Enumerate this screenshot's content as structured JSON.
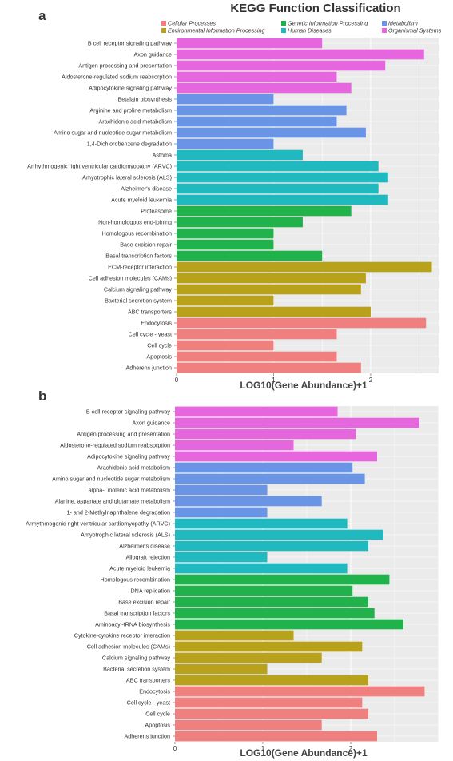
{
  "figure": {
    "title": "KEGG Function Classification"
  },
  "colors": {
    "Cellular Processes": "#F08080",
    "Environmental Information Processing": "#B8A21C",
    "Genetic Information Processing": "#22B24C",
    "Human Diseases": "#20B9C0",
    "Metabolism": "#6A95E6",
    "Organismal Systems": "#E667DD",
    "panel_bg": "#EBEBEB",
    "grid": "#FFFFFF"
  },
  "legend": {
    "placement": "top",
    "entries": [
      "Cellular Processes",
      "Genetic Information Processing",
      "Metabolism",
      "Environmental Information Processing",
      "Human Diseases",
      "Organismal Systems"
    ]
  },
  "chart_data": [
    {
      "type": "bar",
      "orientation": "horizontal",
      "panel_label": "a",
      "xlabel": "LOG10(Gene Abundance)+1",
      "ylabel": "",
      "xlim": [
        0,
        2.7
      ],
      "xticks": [
        0,
        1,
        2
      ],
      "grid": true,
      "categories": [
        "B cell receptor signaling pathway",
        "Axon guidance",
        "Antigen processing and presentation",
        "Aldosterone-regulated sodium reabsorption",
        "Adipocytokine signaling pathway",
        "Betalain biosynthesis",
        "Arginine and proline metabolism",
        "Arachidonic acid metabolism",
        "Amino sugar and nucleotide sugar metabolism",
        "1,4-Dichlorobenzene degradation",
        "Asthma",
        "Arrhythmogenic right ventricular cardiomyopathy (ARVC)",
        "Amyotrophic lateral sclerosis (ALS)",
        "Alzheimer's disease",
        "Acute myeloid leukemia",
        "Proteasome",
        "Non-homologous end-joining",
        "Homologous recombination",
        "Base excision repair",
        "Basal transcription factors",
        "ECM-receptor interaction",
        "Cell adhesion molecules (CAMs)",
        "Calcium signaling pathway",
        "Bacterial secretion system",
        "ABC transporters",
        "Endocytosis",
        "Cell cycle - yeast",
        "Cell cycle",
        "Apoptosis",
        "Adherens junction"
      ],
      "values": [
        1.5,
        2.55,
        2.15,
        1.65,
        1.8,
        1.0,
        1.75,
        1.65,
        1.95,
        1.0,
        1.3,
        2.08,
        2.18,
        2.08,
        2.18,
        1.8,
        1.3,
        1.0,
        1.0,
        1.5,
        2.63,
        1.95,
        1.9,
        1.0,
        2.0,
        2.57,
        1.65,
        1.0,
        1.65,
        1.9
      ],
      "groups": [
        "Organismal Systems",
        "Organismal Systems",
        "Organismal Systems",
        "Organismal Systems",
        "Organismal Systems",
        "Metabolism",
        "Metabolism",
        "Metabolism",
        "Metabolism",
        "Metabolism",
        "Human Diseases",
        "Human Diseases",
        "Human Diseases",
        "Human Diseases",
        "Human Diseases",
        "Genetic Information Processing",
        "Genetic Information Processing",
        "Genetic Information Processing",
        "Genetic Information Processing",
        "Genetic Information Processing",
        "Environmental Information Processing",
        "Environmental Information Processing",
        "Environmental Information Processing",
        "Environmental Information Processing",
        "Environmental Information Processing",
        "Cellular Processes",
        "Cellular Processes",
        "Cellular Processes",
        "Cellular Processes",
        "Cellular Processes"
      ]
    },
    {
      "type": "bar",
      "orientation": "horizontal",
      "panel_label": "b",
      "xlabel": "LOG10(Gene Abundance)+1",
      "ylabel": "",
      "xlim": [
        0,
        3.0
      ],
      "xticks": [
        0,
        1,
        2
      ],
      "grid": true,
      "categories": [
        "B cell receptor signaling pathway",
        "Axon guidance",
        "Antigen processing and presentation",
        "Aldosterone-regulated sodium reabsorption",
        "Adipocytokine signaling pathway",
        "Arachidonic acid metabolism",
        "Amino sugar and nucleotide sugar metabolism",
        "alpha-Linolenic acid metabolism",
        "Alanine, aspartate and glutamate metabolism",
        "1- and 2-Methylnaphthalene degradation",
        "Arrhythmogenic right ventricular cardiomyopathy (ARVC)",
        "Amyotrophic lateral sclerosis (ALS)",
        "Alzheimer's disease",
        "Allograft rejection",
        "Acute myeloid leukemia",
        "Homologous recombination",
        "DNA replication",
        "Base excision repair",
        "Basal transcription factors",
        "Aminoacyl-tRNA biosynthesis",
        "Cytokine-cytokine receptor interaction",
        "Cell adhesion molecules (CAMs)",
        "Calcium signaling pathway",
        "Bacterial secretion system",
        "ABC transporters",
        "Endocytosis",
        "Cell cycle - yeast",
        "Cell cycle",
        "Apoptosis",
        "Adherens junction"
      ],
      "values": [
        1.85,
        2.78,
        2.06,
        1.35,
        2.3,
        2.02,
        2.16,
        1.05,
        1.67,
        1.05,
        1.96,
        2.37,
        2.2,
        1.05,
        1.96,
        2.44,
        2.02,
        2.2,
        2.27,
        2.6,
        1.35,
        2.13,
        1.67,
        1.05,
        2.2,
        2.84,
        2.13,
        2.2,
        1.67,
        2.3
      ],
      "groups": [
        "Organismal Systems",
        "Organismal Systems",
        "Organismal Systems",
        "Organismal Systems",
        "Organismal Systems",
        "Metabolism",
        "Metabolism",
        "Metabolism",
        "Metabolism",
        "Metabolism",
        "Human Diseases",
        "Human Diseases",
        "Human Diseases",
        "Human Diseases",
        "Human Diseases",
        "Genetic Information Processing",
        "Genetic Information Processing",
        "Genetic Information Processing",
        "Genetic Information Processing",
        "Genetic Information Processing",
        "Environmental Information Processing",
        "Environmental Information Processing",
        "Environmental Information Processing",
        "Environmental Information Processing",
        "Environmental Information Processing",
        "Cellular Processes",
        "Cellular Processes",
        "Cellular Processes",
        "Cellular Processes",
        "Cellular Processes"
      ]
    }
  ]
}
